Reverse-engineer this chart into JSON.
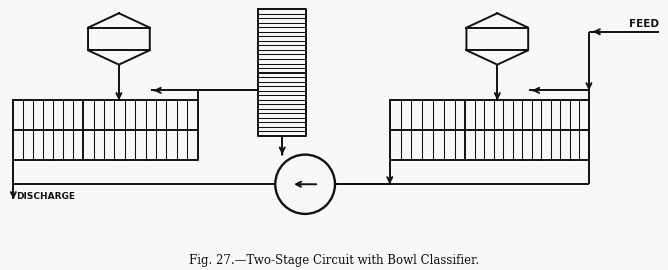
{
  "bg_color": "#f8f8f8",
  "line_color": "#111111",
  "title": "Fig. 27.—Two-Stage Circuit with Bowl Classifier.",
  "feed_label": "FEED",
  "discharge_label": "DISCHARGE",
  "lw": 1.4,
  "lw_thin": 0.75
}
